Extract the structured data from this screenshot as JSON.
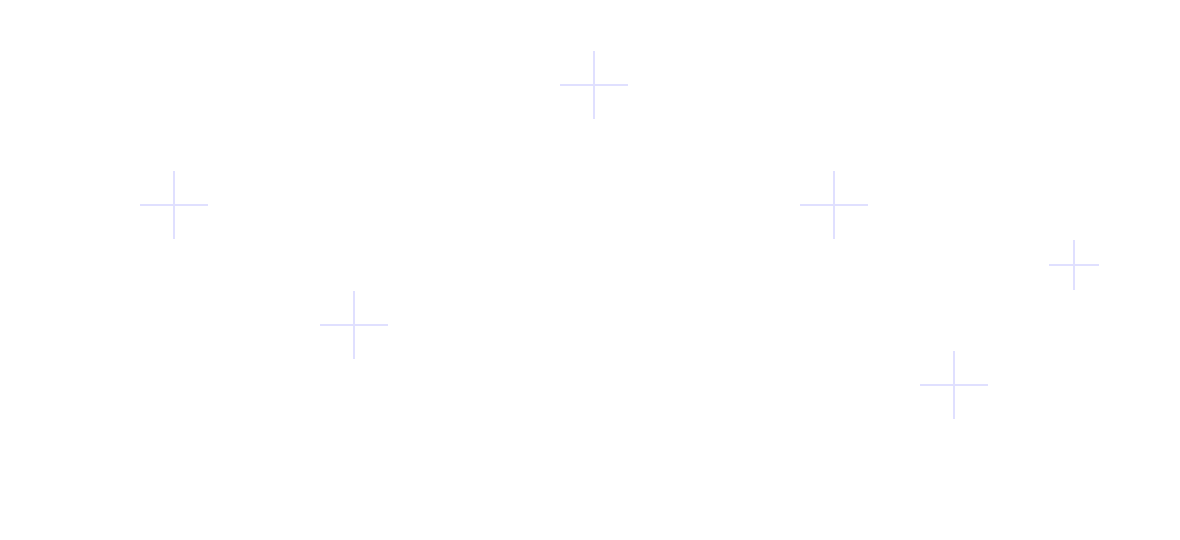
{
  "background": {
    "cross_color": "#e0e0ff",
    "decoration_icon": "plus-sparkle-icon"
  }
}
